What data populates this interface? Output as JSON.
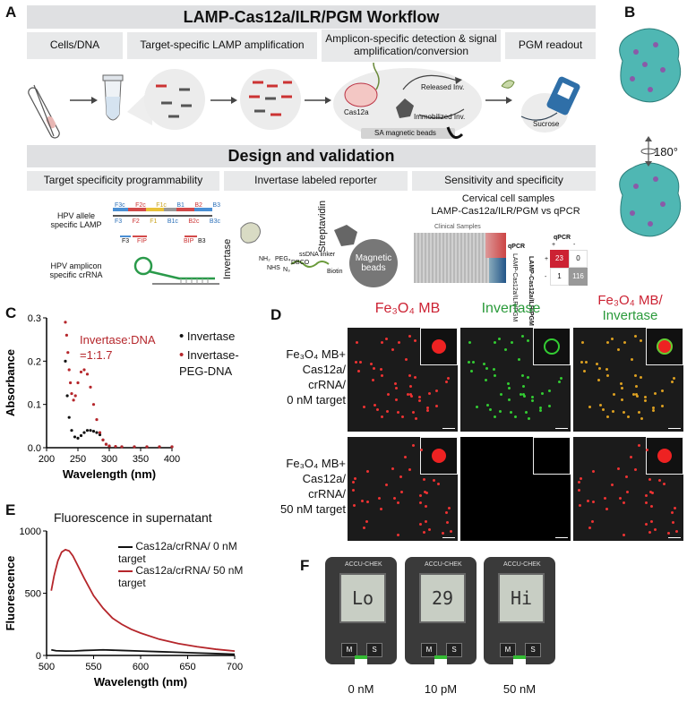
{
  "panels": {
    "A": "A",
    "B": "B",
    "C": "C",
    "D": "D",
    "E": "E",
    "F": "F"
  },
  "workflow": {
    "title": "LAMP-Cas12a/ILR/PGM Workflow",
    "steps": [
      "Cells/DNA",
      "Target-specific LAMP amplification",
      "Amplicon-specific detection & signal amplification/conversion",
      "PGM readout"
    ],
    "released": "Released Inv.",
    "immobilized": "Immobilized Inv.",
    "cas": "Cas12a",
    "beads": "SA magnetic beads",
    "sucrose": "Sucrose"
  },
  "design": {
    "title": "Design and validation",
    "sections": [
      "Target specificity programmability",
      "Invertase labeled reporter",
      "Sensitivity and specificity"
    ],
    "lamp_label": "HPV allele specific LAMP",
    "crrna_label": "HPV amplicon specific crRNA",
    "primers_top": [
      "F3c",
      "F2c",
      "F1c",
      "B1",
      "B2",
      "B3"
    ],
    "primers_bot": [
      "F3",
      "F2",
      "F1",
      "B1c",
      "B2c",
      "B3c"
    ],
    "primers_small": [
      "F3",
      "FIP",
      "BIP",
      "B3"
    ],
    "reporter": {
      "invertase": "Invertase",
      "linker_labels": [
        "NH₂",
        "NHS",
        "PEG₄",
        "N₃",
        "DBCO",
        "ssDNA linker",
        "Biotin"
      ],
      "strep": "Streptavidin",
      "beads": "Magnetic beads"
    },
    "cervical_title": "Cervical cell samples",
    "cervical_sub": "LAMP-Cas12a/ILR/PGM vs qPCR",
    "clinical": "Clinical Samples",
    "qpcr": "qPCR",
    "row_labels": [
      "qPCR",
      "LAMP-Cas12a/ILR/PGM"
    ],
    "matrix_col_title": "qPCR",
    "matrix_cols": [
      "+",
      "-"
    ],
    "matrix_row_title": "LAMP-Cas12a/ILR/PGM",
    "matrix_rows": [
      "+",
      "-"
    ],
    "matrix": [
      [
        "23",
        "0"
      ],
      [
        "1",
        "116"
      ]
    ],
    "rotation": "180°"
  },
  "chart_c": {
    "annotation_line1": "Invertase:DNA",
    "annotation_line2": "=1:1.7",
    "legend": [
      "Invertase",
      "Invertase-PEG-DNA"
    ],
    "ylabel": "Absorbance",
    "xlabel": "Wavelength (nm)",
    "xticks": [
      "200",
      "250",
      "300",
      "350",
      "400"
    ],
    "yticks": [
      "0.0",
      "0.1",
      "0.2",
      "0.3"
    ]
  },
  "panel_d": {
    "cols": [
      "Fe₃O₄ MB",
      "Invertase",
      "Fe₃O₄ MB/",
      "Invertase"
    ],
    "row1": [
      "Fe₃O₄ MB+",
      "Cas12a/",
      "crRNA/",
      "0 nM target"
    ],
    "row2": [
      "Fe₃O₄ MB+",
      "Cas12a/",
      "crRNA/",
      "50 nM target"
    ]
  },
  "chart_e": {
    "title": "Fluorescence in supernatant",
    "legend": [
      "Cas12a/crRNA/ 0 nM target",
      "Cas12a/crRNA/ 50 nM target"
    ],
    "ylabel": "Fluorescence",
    "xlabel": "Wavelength (nm)",
    "xticks": [
      "500",
      "550",
      "600",
      "650",
      "700"
    ],
    "yticks": [
      "0",
      "500",
      "1000"
    ]
  },
  "panel_f": {
    "readings": [
      "Lo",
      "29",
      "Hi"
    ],
    "labels": [
      "0 nM",
      "10 pM",
      "50 nM"
    ],
    "brand": "ACCU-CHEK",
    "buttons": [
      "M",
      "S"
    ]
  },
  "chart_data": [
    {
      "type": "scatter",
      "xlabel": "Wavelength (nm)",
      "ylabel": "Absorbance",
      "xlim": [
        200,
        400
      ],
      "ylim": [
        0,
        0.3
      ],
      "series": [
        {
          "name": "Invertase",
          "color": "#111111",
          "x": [
            230,
            233,
            236,
            240,
            245,
            250,
            255,
            260,
            265,
            270,
            275,
            280,
            285,
            290,
            295,
            300,
            310,
            320,
            340,
            360,
            380,
            400
          ],
          "y": [
            0.2,
            0.12,
            0.07,
            0.04,
            0.025,
            0.022,
            0.028,
            0.035,
            0.04,
            0.04,
            0.038,
            0.035,
            0.03,
            0.018,
            0.008,
            0.004,
            0.002,
            0.002,
            0.002,
            0.002,
            0.002,
            0.002
          ]
        },
        {
          "name": "Invertase-PEG-DNA",
          "color": "#b5262b",
          "x": [
            230,
            232,
            234,
            236,
            238,
            240,
            243,
            246,
            250,
            255,
            260,
            265,
            270,
            275,
            280,
            285,
            290,
            295,
            300,
            310,
            320,
            340,
            360,
            380,
            400
          ],
          "y": [
            0.29,
            0.26,
            0.22,
            0.18,
            0.15,
            0.125,
            0.11,
            0.12,
            0.15,
            0.175,
            0.18,
            0.17,
            0.14,
            0.1,
            0.065,
            0.035,
            0.018,
            0.008,
            0.004,
            0.003,
            0.002,
            0.002,
            0.002,
            0.002,
            0.002
          ]
        }
      ]
    },
    {
      "type": "line",
      "title": "Fluorescence in supernatant",
      "xlabel": "Wavelength (nm)",
      "ylabel": "Fluorescence",
      "xlim": [
        500,
        700
      ],
      "ylim": [
        0,
        1000
      ],
      "series": [
        {
          "name": "Cas12a/crRNA/ 0 nM target",
          "color": "#111111",
          "x": [
            505,
            510,
            520,
            530,
            540,
            550,
            560,
            580,
            600,
            620,
            640,
            660,
            680,
            700
          ],
          "y": [
            45,
            38,
            35,
            36,
            40,
            42,
            45,
            40,
            35,
            30,
            25,
            20,
            15,
            10
          ]
        },
        {
          "name": "Cas12a/crRNA/ 50 nM target",
          "color": "#b5262b",
          "x": [
            505,
            508,
            512,
            516,
            520,
            524,
            528,
            532,
            540,
            550,
            560,
            570,
            580,
            590,
            600,
            620,
            640,
            660,
            680,
            700
          ],
          "y": [
            520,
            640,
            760,
            830,
            850,
            840,
            800,
            740,
            620,
            480,
            380,
            300,
            250,
            210,
            180,
            130,
            95,
            70,
            50,
            35
          ]
        }
      ]
    }
  ]
}
